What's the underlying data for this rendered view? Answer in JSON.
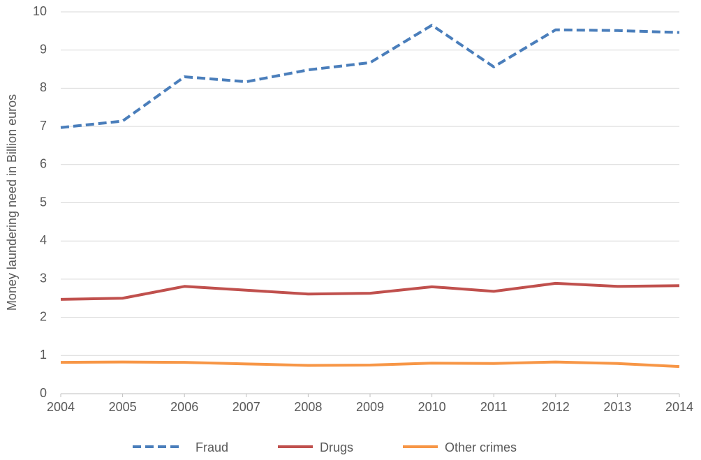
{
  "chart_data": {
    "type": "line",
    "y_label": "Money laundering need in Billion euros",
    "x": [
      2004,
      2005,
      2006,
      2007,
      2008,
      2009,
      2010,
      2011,
      2012,
      2013,
      2014
    ],
    "xlim": [
      2004,
      2014
    ],
    "xticks": [
      2004,
      2005,
      2006,
      2007,
      2008,
      2009,
      2010,
      2011,
      2012,
      2013,
      2014
    ],
    "ylim": [
      0,
      10
    ],
    "yticks": [
      0,
      1,
      2,
      3,
      4,
      5,
      6,
      7,
      8,
      9,
      10
    ],
    "grid": true,
    "legend": "bottom",
    "series": [
      {
        "name": "Fraud",
        "color": "#4a7ebb",
        "dashed": true,
        "values": [
          6.97,
          7.14,
          8.3,
          8.17,
          8.48,
          8.67,
          9.65,
          8.56,
          9.53,
          9.51,
          9.46
        ]
      },
      {
        "name": "Drugs",
        "color": "#c0504d",
        "values": [
          2.47,
          2.5,
          2.81,
          2.71,
          2.61,
          2.63,
          2.8,
          2.68,
          2.89,
          2.81,
          2.83
        ]
      },
      {
        "name": "Other crimes",
        "color": "#f79646",
        "values": [
          0.82,
          0.83,
          0.82,
          0.78,
          0.74,
          0.75,
          0.8,
          0.79,
          0.83,
          0.79,
          0.71
        ]
      }
    ]
  }
}
